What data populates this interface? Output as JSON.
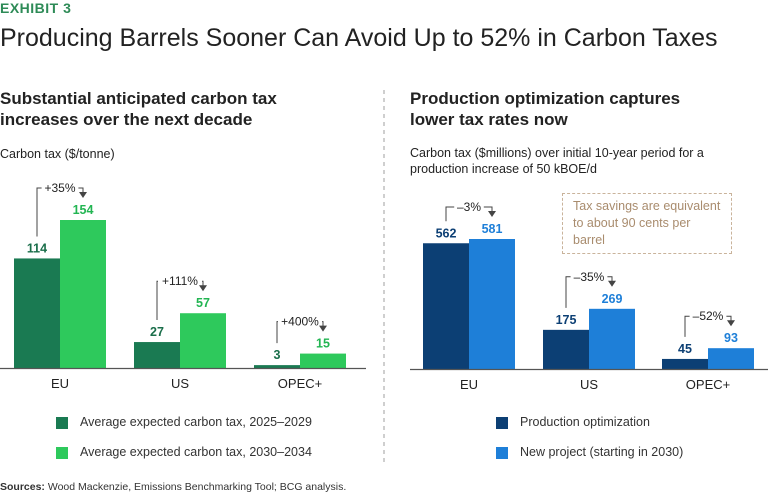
{
  "header": {
    "exhibit": "EXHIBIT 3",
    "title": "Producing Barrels Sooner Can Avoid Up to 52% in Carbon Taxes"
  },
  "left_panel": {
    "subtitle_line1": "Substantial anticipated carbon tax",
    "subtitle_line2": "increases over the next decade",
    "unit_label": "Carbon tax ($/tonne)"
  },
  "right_panel": {
    "subtitle_line1": "Production optimization captures",
    "subtitle_line2": "lower tax rates now",
    "unit_label_line1": "Carbon tax ($millions) over initial 10-year period for a",
    "unit_label_line2": "production increase of 50 kBOE/d",
    "callout_line1": "Tax savings are equivalent",
    "callout_line2": "to about 90 cents per barrel"
  },
  "sources": {
    "label": "Sources:",
    "text": " Wood Mackenzie, Emissions Benchmarking Tool; BCG analysis."
  },
  "colors": {
    "left_series_1": "#1a7a52",
    "left_series_2": "#2ec95c",
    "left_label_1": "#1a6e4a",
    "left_label_2": "#22b552",
    "right_series_1": "#0c3f74",
    "right_series_2": "#1e7fd8",
    "right_label_1": "#0c3f74",
    "right_label_2": "#1e7fd8",
    "exhibit": "#2e8b57"
  },
  "chart_data": [
    {
      "type": "bar",
      "title": "Substantial anticipated carbon tax increases over the next decade",
      "ylabel": "Carbon tax ($/tonne)",
      "categories": [
        "EU",
        "US",
        "OPEC+"
      ],
      "series": [
        {
          "name": "Average expected carbon tax, 2025–2029",
          "values": [
            114,
            27,
            3
          ]
        },
        {
          "name": "Average expected carbon tax, 2030–2034",
          "values": [
            154,
            57,
            15
          ]
        }
      ],
      "change_labels": [
        "+35%",
        "+111%",
        "+400%"
      ],
      "ylim": [
        0,
        154
      ],
      "grid": false,
      "legend": "bottom"
    },
    {
      "type": "bar",
      "title": "Production optimization captures lower tax rates now",
      "ylabel": "Carbon tax ($millions) over initial 10-year period for a production increase of 50 kBOE/d",
      "categories": [
        "EU",
        "US",
        "OPEC+"
      ],
      "series": [
        {
          "name": "Production optimization",
          "values": [
            562,
            175,
            45
          ]
        },
        {
          "name": "New project (starting in 2030)",
          "values": [
            581,
            269,
            93
          ]
        }
      ],
      "change_labels": [
        "–3%",
        "–35%",
        "–52%"
      ],
      "ylim": [
        0,
        581
      ],
      "grid": false,
      "legend": "bottom"
    }
  ]
}
